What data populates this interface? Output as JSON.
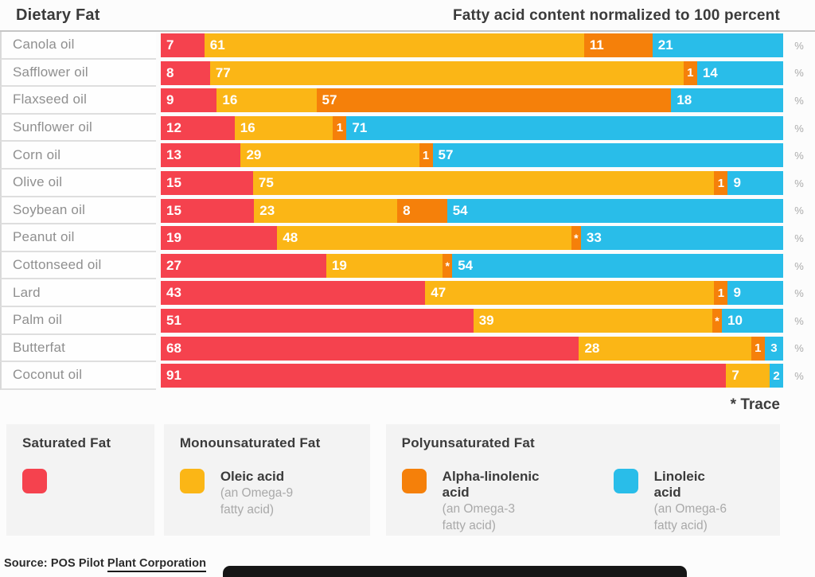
{
  "header": {
    "title": "Dietary Fat",
    "subtitle": "Fatty acid content normalized to 100 percent"
  },
  "unit_symbol": "%",
  "trace_note": "* Trace",
  "palette": {
    "saturated": "#f5424e",
    "oleic": "#fbb616",
    "alpha_linolenic": "#f5800a",
    "linoleic": "#29bde9"
  },
  "chart_data": {
    "type": "bar",
    "stacked": true,
    "orientation": "horizontal",
    "title": "Dietary Fat",
    "subtitle": "Fatty acid content normalized to 100 percent",
    "unit": "percent",
    "xlim": [
      0,
      100
    ],
    "series_names": [
      "Saturated Fat",
      "Oleic acid (Monounsaturated)",
      "Alpha-linolenic acid (Polyunsaturated)",
      "Linoleic acid (Polyunsaturated)"
    ],
    "trace_meaning": "* = trace amount (<1%)",
    "rows": [
      {
        "label": "Canola oil",
        "segments": [
          {
            "key": "saturated",
            "value": 7,
            "display": "7"
          },
          {
            "key": "oleic",
            "value": 61,
            "display": "61"
          },
          {
            "key": "alpha_linolenic",
            "value": 11,
            "display": "11"
          },
          {
            "key": "linoleic",
            "value": 21,
            "display": "21"
          }
        ]
      },
      {
        "label": "Safflower oil",
        "segments": [
          {
            "key": "saturated",
            "value": 8,
            "display": "8"
          },
          {
            "key": "oleic",
            "value": 77,
            "display": "77"
          },
          {
            "key": "alpha_linolenic",
            "value": 1,
            "display": "1"
          },
          {
            "key": "linoleic",
            "value": 14,
            "display": "14"
          }
        ]
      },
      {
        "label": "Flaxseed oil",
        "segments": [
          {
            "key": "saturated",
            "value": 9,
            "display": "9"
          },
          {
            "key": "oleic",
            "value": 16,
            "display": "16"
          },
          {
            "key": "alpha_linolenic",
            "value": 57,
            "display": "57"
          },
          {
            "key": "linoleic",
            "value": 18,
            "display": "18"
          }
        ]
      },
      {
        "label": "Sunflower oil",
        "segments": [
          {
            "key": "saturated",
            "value": 12,
            "display": "12"
          },
          {
            "key": "oleic",
            "value": 16,
            "display": "16"
          },
          {
            "key": "alpha_linolenic",
            "value": 1,
            "display": "1"
          },
          {
            "key": "linoleic",
            "value": 71,
            "display": "71"
          }
        ]
      },
      {
        "label": "Corn oil",
        "segments": [
          {
            "key": "saturated",
            "value": 13,
            "display": "13"
          },
          {
            "key": "oleic",
            "value": 29,
            "display": "29"
          },
          {
            "key": "alpha_linolenic",
            "value": 1,
            "display": "1"
          },
          {
            "key": "linoleic",
            "value": 57,
            "display": "57"
          }
        ]
      },
      {
        "label": "Olive oil",
        "segments": [
          {
            "key": "saturated",
            "value": 15,
            "display": "15"
          },
          {
            "key": "oleic",
            "value": 75,
            "display": "75"
          },
          {
            "key": "alpha_linolenic",
            "value": 1,
            "display": "1"
          },
          {
            "key": "linoleic",
            "value": 9,
            "display": "9"
          }
        ]
      },
      {
        "label": "Soybean oil",
        "segments": [
          {
            "key": "saturated",
            "value": 15,
            "display": "15"
          },
          {
            "key": "oleic",
            "value": 23,
            "display": "23"
          },
          {
            "key": "alpha_linolenic",
            "value": 8,
            "display": "8"
          },
          {
            "key": "linoleic",
            "value": 54,
            "display": "54"
          }
        ]
      },
      {
        "label": "Peanut oil",
        "segments": [
          {
            "key": "saturated",
            "value": 19,
            "display": "19"
          },
          {
            "key": "oleic",
            "value": 48,
            "display": "48"
          },
          {
            "key": "alpha_linolenic",
            "value": 0.5,
            "display": "*",
            "trace": true
          },
          {
            "key": "linoleic",
            "value": 33,
            "display": "33"
          }
        ]
      },
      {
        "label": "Cottonseed oil",
        "segments": [
          {
            "key": "saturated",
            "value": 27,
            "display": "27"
          },
          {
            "key": "oleic",
            "value": 19,
            "display": "19"
          },
          {
            "key": "alpha_linolenic",
            "value": 0.5,
            "display": "*",
            "trace": true
          },
          {
            "key": "linoleic",
            "value": 54,
            "display": "54"
          }
        ]
      },
      {
        "label": "Lard",
        "segments": [
          {
            "key": "saturated",
            "value": 43,
            "display": "43"
          },
          {
            "key": "oleic",
            "value": 47,
            "display": "47"
          },
          {
            "key": "alpha_linolenic",
            "value": 1,
            "display": "1"
          },
          {
            "key": "linoleic",
            "value": 9,
            "display": "9"
          }
        ]
      },
      {
        "label": "Palm oil",
        "segments": [
          {
            "key": "saturated",
            "value": 51,
            "display": "51"
          },
          {
            "key": "oleic",
            "value": 39,
            "display": "39"
          },
          {
            "key": "alpha_linolenic",
            "value": 0.5,
            "display": "*",
            "trace": true
          },
          {
            "key": "linoleic",
            "value": 10,
            "display": "10"
          }
        ]
      },
      {
        "label": "Butterfat",
        "segments": [
          {
            "key": "saturated",
            "value": 68,
            "display": "68"
          },
          {
            "key": "oleic",
            "value": 28,
            "display": "28"
          },
          {
            "key": "alpha_linolenic",
            "value": 1,
            "display": "1"
          },
          {
            "key": "linoleic",
            "value": 3,
            "display": "3"
          }
        ]
      },
      {
        "label": "Coconut oil",
        "segments": [
          {
            "key": "saturated",
            "value": 91,
            "display": "91"
          },
          {
            "key": "oleic",
            "value": 7,
            "display": "7"
          },
          {
            "key": "linoleic",
            "value": 2,
            "display": "2"
          }
        ]
      }
    ]
  },
  "legend": {
    "panels": [
      {
        "title": "Saturated Fat",
        "items": [
          {
            "key": "saturated",
            "name": "",
            "sub1": "",
            "sub2": ""
          }
        ]
      },
      {
        "title": "Monounsaturated Fat",
        "items": [
          {
            "key": "oleic",
            "name": "Oleic acid",
            "sub1": "(an Omega-9",
            "sub2": "fatty acid)"
          }
        ]
      },
      {
        "title": "Polyunsaturated Fat",
        "items": [
          {
            "key": "alpha_linolenic",
            "name": "Alpha-linolenic acid",
            "sub1": "(an Omega-3",
            "sub2": "fatty acid)"
          },
          {
            "key": "linoleic",
            "name": "Linoleic acid",
            "sub1": "(an Omega-6",
            "sub2": "fatty acid)"
          }
        ]
      }
    ]
  },
  "source": {
    "prefix": "Source: POS Pilot ",
    "underlined": "Plant Corporation"
  }
}
